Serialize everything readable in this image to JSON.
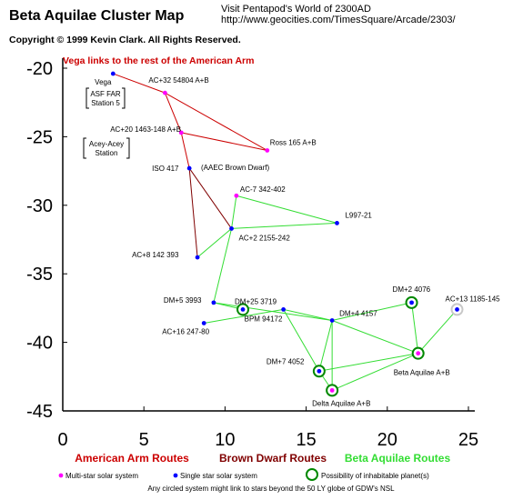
{
  "header": {
    "title": "Beta Aquilae Cluster Map",
    "visit_line1": "Visit Pentapod's World of 2300AD",
    "visit_line2": "http://www.geocities.com/TimesSquare/Arcade/2303/",
    "copyright": "Copyright © 1999 Kevin Clark.  All Rights Reserved."
  },
  "chart_data": {
    "type": "scatter",
    "xlim": [
      0,
      25
    ],
    "ylim": [
      -45,
      -20
    ],
    "xticks": [
      "0",
      "5",
      "10",
      "15",
      "20",
      "25"
    ],
    "yticks": [
      "-20",
      "-25",
      "-30",
      "-35",
      "-40",
      "-45"
    ],
    "grid": false,
    "annotation": "Vega links to the rest of the American Arm",
    "colors": {
      "american": "#cc0000",
      "brown": "#800000",
      "beta": "#33dd33",
      "multi": "#ff00ff",
      "single": "#0000ff",
      "ring": "#008800"
    },
    "stars": [
      {
        "id": "vega",
        "label": "Vega",
        "x": 3.1,
        "y": -20.4,
        "type": "single"
      },
      {
        "id": "ac32",
        "label": "AC+32 54804 A+B",
        "x": 6.3,
        "y": -21.8,
        "type": "multi"
      },
      {
        "id": "ross165",
        "label": "Ross 165 A+B",
        "x": 12.6,
        "y": -26.0,
        "type": "multi"
      },
      {
        "id": "ac20",
        "label": "AC+20 1463-148 A+B",
        "x": 7.3,
        "y": -24.7,
        "type": "multi"
      },
      {
        "id": "iso417",
        "label": "ISO 417",
        "x": 7.8,
        "y": -27.3,
        "type": "single"
      },
      {
        "id": "ac7",
        "label": "AC-7 342-402",
        "x": 10.7,
        "y": -29.3,
        "type": "multi"
      },
      {
        "id": "l997",
        "label": "L997-21",
        "x": 16.9,
        "y": -31.3,
        "type": "single"
      },
      {
        "id": "ac2",
        "label": "AC+2 2155-242",
        "x": 10.4,
        "y": -31.7,
        "type": "single"
      },
      {
        "id": "ac8",
        "label": "AC+8 142 393",
        "x": 8.3,
        "y": -33.8,
        "type": "single"
      },
      {
        "id": "dm5",
        "label": "DM+5 3993",
        "x": 9.3,
        "y": -37.1,
        "type": "single"
      },
      {
        "id": "dm25",
        "label": "DM+25 3719",
        "x": 11.1,
        "y": -37.6,
        "type": "single",
        "ring": true
      },
      {
        "id": "ac16",
        "label": "AC+16 247-80",
        "x": 8.7,
        "y": -38.6,
        "type": "single"
      },
      {
        "id": "bpm",
        "label": "BPM 94172",
        "x": 13.6,
        "y": -37.6,
        "type": "single"
      },
      {
        "id": "dm4",
        "label": "DM+4 4157",
        "x": 16.6,
        "y": -38.4,
        "type": "single"
      },
      {
        "id": "dm2",
        "label": "DM+2 4076",
        "x": 21.5,
        "y": -37.1,
        "type": "single",
        "ring": true
      },
      {
        "id": "ac13",
        "label": "AC+13 1185-145",
        "x": 24.3,
        "y": -37.6,
        "type": "single",
        "ring": true,
        "ringGrey": true
      },
      {
        "id": "dm7",
        "label": "DM+7 4052",
        "x": 15.8,
        "y": -42.1,
        "type": "single",
        "ring": true
      },
      {
        "id": "delta",
        "label": "Delta Aquilae A+B",
        "x": 16.6,
        "y": -43.5,
        "type": "multi",
        "ring": true
      },
      {
        "id": "betaaq",
        "label": "Beta Aquilae A+B",
        "x": 21.9,
        "y": -40.8,
        "type": "multi",
        "ring": true
      }
    ],
    "extra_labels": {
      "asf1": "ASF FAR",
      "asf2": "Station 5",
      "acey1": "Acey-Acey",
      "acey2": "Station",
      "aaec": "(AAEC Brown Dwarf)"
    },
    "routes": [
      {
        "series": "american",
        "from": "vega",
        "to": "ac32"
      },
      {
        "series": "american",
        "from": "ac32",
        "to": "ross165"
      },
      {
        "series": "american",
        "from": "ac32",
        "to": "ac20"
      },
      {
        "series": "american",
        "from": "ac20",
        "to": "ross165"
      },
      {
        "series": "american",
        "from": "ac20",
        "to": "iso417"
      },
      {
        "series": "brown",
        "from": "iso417",
        "to": "ac2"
      },
      {
        "series": "brown",
        "from": "iso417",
        "to": "ac8"
      },
      {
        "series": "beta",
        "from": "ac2",
        "to": "ac7"
      },
      {
        "series": "beta",
        "from": "ac2",
        "to": "l997"
      },
      {
        "series": "beta",
        "from": "ac7",
        "to": "l997"
      },
      {
        "series": "beta",
        "from": "ac2",
        "to": "ac8"
      },
      {
        "series": "beta",
        "from": "ac2",
        "to": "dm5"
      },
      {
        "series": "beta",
        "from": "dm5",
        "to": "dm25"
      },
      {
        "series": "beta",
        "from": "dm5",
        "to": "dm4"
      },
      {
        "series": "beta",
        "from": "ac16",
        "to": "bpm"
      },
      {
        "series": "beta",
        "from": "bpm",
        "to": "dm4"
      },
      {
        "series": "beta",
        "from": "bpm",
        "to": "dm7"
      },
      {
        "series": "beta",
        "from": "dm4",
        "to": "dm2"
      },
      {
        "series": "beta",
        "from": "dm4",
        "to": "dm7"
      },
      {
        "series": "beta",
        "from": "dm4",
        "to": "delta"
      },
      {
        "series": "beta",
        "from": "dm4",
        "to": "betaaq"
      },
      {
        "series": "beta",
        "from": "dm2",
        "to": "betaaq"
      },
      {
        "series": "beta",
        "from": "betaaq",
        "to": "ac13"
      },
      {
        "series": "beta",
        "from": "betaaq",
        "to": "dm7"
      },
      {
        "series": "beta",
        "from": "betaaq",
        "to": "delta"
      },
      {
        "series": "beta",
        "from": "dm7",
        "to": "delta"
      }
    ],
    "route_legend": {
      "american": "American Arm Routes",
      "brown": "Brown Dwarf Routes",
      "beta": "Beta Aquilae Routes"
    },
    "legend": {
      "multi": "Multi-star solar system",
      "single": "Single star solar system",
      "ring": "Possibility of inhabitable planet(s)",
      "note": "Any circled system might link to stars  beyond the 50 LY globe of GDW's NSL"
    }
  }
}
